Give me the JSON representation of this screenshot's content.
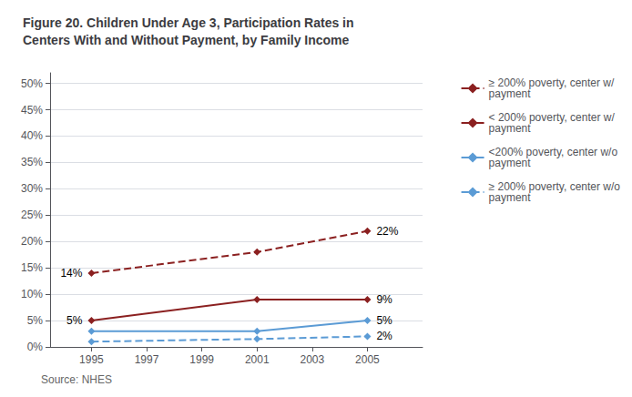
{
  "chart_data": {
    "type": "line",
    "title": "Figure 20. Children Under Age 3, Participation Rates in\nCenters With and Without Payment, by Family Income",
    "source": "Source: NHES",
    "x": [
      1995,
      2001,
      2005
    ],
    "series": [
      {
        "name": "≥ 200% poverty, center w/\npayment",
        "color": "#8B2020",
        "line_style": "dashed",
        "marker": "diamond",
        "values": [
          14,
          18,
          22
        ],
        "annotations": [
          "14%",
          null,
          "22%"
        ]
      },
      {
        "name": "< 200% poverty, center w/\npayment",
        "color": "#8B2020",
        "line_style": "solid",
        "marker": "diamond",
        "values": [
          5,
          9,
          9
        ],
        "annotations": [
          "5%",
          null,
          "9%"
        ]
      },
      {
        "name": "<200% poverty, center w/o\npayment",
        "color": "#5B9BD5",
        "line_style": "solid",
        "marker": "diamond",
        "values": [
          3,
          3,
          5
        ],
        "annotations": [
          null,
          null,
          "5%"
        ]
      },
      {
        "name": "≥ 200% poverty, center w/o\npayment",
        "color": "#5B9BD5",
        "line_style": "dashed",
        "marker": "diamond",
        "values": [
          1,
          1.5,
          2
        ],
        "annotations": [
          null,
          null,
          "2%"
        ]
      }
    ],
    "xlim": [
      1993.5,
      2007
    ],
    "xticks": [
      1995,
      1997,
      1999,
      2001,
      2003,
      2005
    ],
    "ylim": [
      0,
      52
    ],
    "yticks": [
      {
        "value": 0,
        "label": "0%"
      },
      {
        "value": 5,
        "label": "5%"
      },
      {
        "value": 10,
        "label": "10%"
      },
      {
        "value": 15,
        "label": "15%"
      },
      {
        "value": 20,
        "label": "20%"
      },
      {
        "value": 25,
        "label": "25%"
      },
      {
        "value": 30,
        "label": "30%"
      },
      {
        "value": 35,
        "label": "35%"
      },
      {
        "value": 40,
        "label": "40%"
      },
      {
        "value": 45,
        "label": "45%"
      },
      {
        "value": 50,
        "label": "50%"
      }
    ],
    "grid": true,
    "legend": "right"
  }
}
